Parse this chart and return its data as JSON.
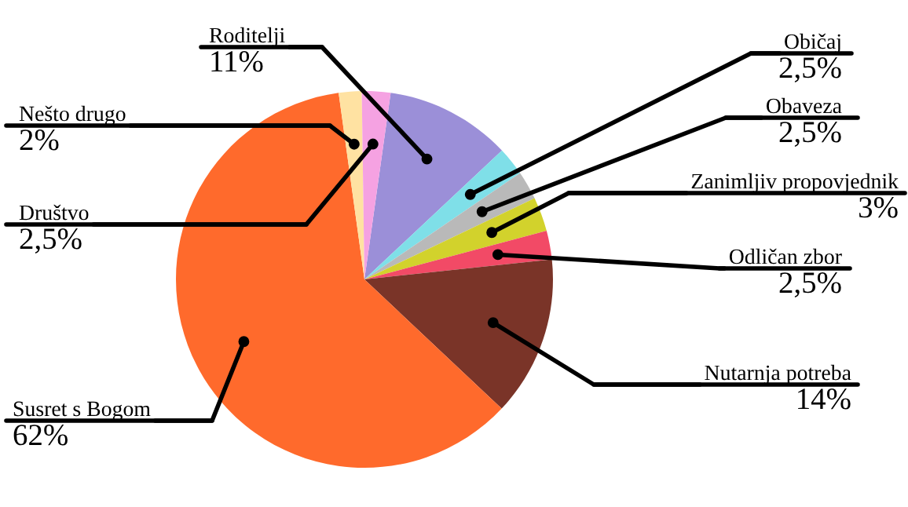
{
  "chart_data": {
    "type": "pie",
    "categories": [
      "Roditelji",
      "Običaj",
      "Obaveza",
      "Zanimljiv propovjednik",
      "Odličan zbor",
      "Nutarnja potreba",
      "Susret s Bogom",
      "Nešto drugo",
      "Društvo"
    ],
    "values": [
      11,
      2.5,
      2.5,
      3,
      2.5,
      14,
      62,
      2,
      2.5
    ],
    "value_labels": [
      "11%",
      "2,5%",
      "2,5%",
      "3%",
      "2,5%",
      "14%",
      "62%",
      "2%",
      "2,5%"
    ],
    "colors": [
      "#9b8fd8",
      "#7fdfe8",
      "#b9b9b9",
      "#d2d22c",
      "#f24a66",
      "#7a3428",
      "#ff6a2c",
      "#ffe2a2",
      "#f5a2e2"
    ]
  }
}
